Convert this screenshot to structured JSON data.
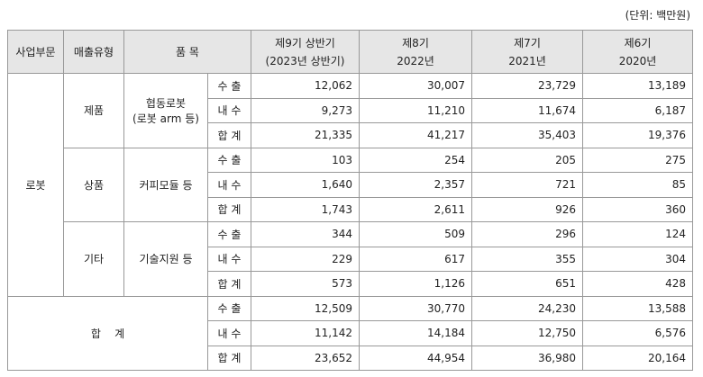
{
  "unit": "(단위: 백만원)",
  "table": {
    "header": {
      "segment": "사업부문",
      "type": "매출유형",
      "item": "품 목",
      "periods": [
        [
          "제9기 상반기",
          "(2023년 상반기)"
        ],
        [
          "제8기",
          "2022년"
        ],
        [
          "제7기",
          "2021년"
        ],
        [
          "제6기",
          "2020년"
        ]
      ]
    },
    "groups": [
      {
        "segment": "로봇",
        "types": [
          {
            "name": "제품",
            "item": [
              "협동로봇",
              "(로봇 arm 등)"
            ],
            "rows": [
              {
                "label": "수 출",
                "values": [
                  "12,062",
                  "30,007",
                  "23,729",
                  "13,189"
                ]
              },
              {
                "label": "내 수",
                "values": [
                  "9,273",
                  "11,210",
                  "11,674",
                  "6,187"
                ]
              },
              {
                "label": "합 계",
                "values": [
                  "21,335",
                  "41,217",
                  "35,403",
                  "19,376"
                ]
              }
            ]
          },
          {
            "name": "상품",
            "item": [
              "커피모듈 등"
            ],
            "rows": [
              {
                "label": "수 출",
                "values": [
                  "103",
                  "254",
                  "205",
                  "275"
                ]
              },
              {
                "label": "내 수",
                "values": [
                  "1,640",
                  "2,357",
                  "721",
                  "85"
                ]
              },
              {
                "label": "합 계",
                "values": [
                  "1,743",
                  "2,611",
                  "926",
                  "360"
                ]
              }
            ]
          },
          {
            "name": "기타",
            "item": [
              "기술지원 등"
            ],
            "rows": [
              {
                "label": "수 출",
                "values": [
                  "344",
                  "509",
                  "296",
                  "124"
                ]
              },
              {
                "label": "내 수",
                "values": [
                  "229",
                  "617",
                  "355",
                  "304"
                ]
              },
              {
                "label": "합 계",
                "values": [
                  "573",
                  "1,126",
                  "651",
                  "428"
                ]
              }
            ]
          }
        ]
      }
    ],
    "total": {
      "label": "합    계",
      "rows": [
        {
          "label": "수 출",
          "values": [
            "12,509",
            "30,770",
            "24,230",
            "13,588"
          ]
        },
        {
          "label": "내 수",
          "values": [
            "11,142",
            "14,184",
            "12,750",
            "6,576"
          ]
        },
        {
          "label": "합 계",
          "values": [
            "23,652",
            "44,954",
            "36,980",
            "20,164"
          ]
        }
      ]
    }
  }
}
